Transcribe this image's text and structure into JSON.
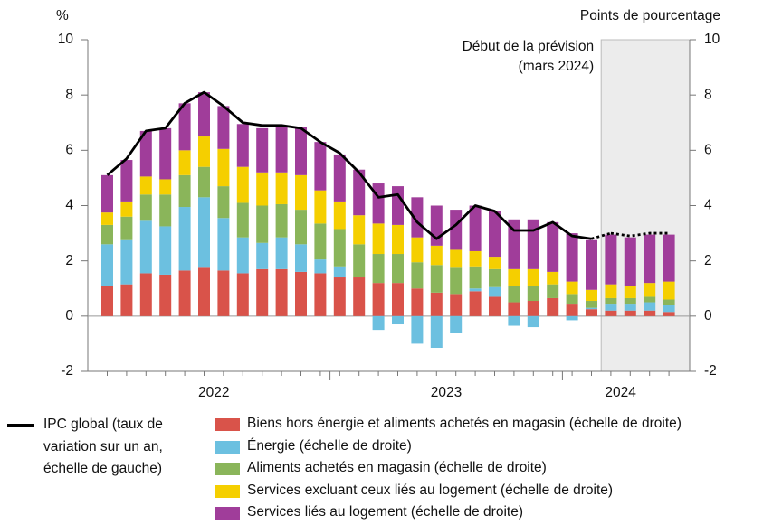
{
  "chart_data": {
    "type": "stacked_bar_line",
    "y_axis_label": "%",
    "y2_axis_label": "Points de pourcentage",
    "annotation": [
      "Début de la prévision",
      "(mars 2024)"
    ],
    "categories": [
      "2022",
      "2022",
      "2022",
      "2022",
      "2022",
      "2022",
      "2022",
      "2022",
      "2022",
      "2022",
      "2022",
      "2022",
      "2023",
      "2023",
      "2023",
      "2023",
      "2023",
      "2023",
      "2023",
      "2023",
      "2023",
      "2023",
      "2023",
      "2023",
      "2024",
      "2024",
      "2024",
      "2024",
      "2024",
      "2024"
    ],
    "ylim": [
      -2,
      10
    ],
    "yticks": [
      -2,
      0,
      2,
      4,
      6,
      8,
      10
    ],
    "y2lim": [
      -2,
      10
    ],
    "y2ticks": [
      -2,
      0,
      2,
      4,
      6,
      8,
      10
    ],
    "line": {
      "name": "IPC global (taux de variation sur un an, échelle de gauche)",
      "color": "#000000",
      "values": [
        5.1,
        5.7,
        6.7,
        6.8,
        7.7,
        8.1,
        7.6,
        7.0,
        6.9,
        6.9,
        6.8,
        6.3,
        5.9,
        5.2,
        4.3,
        4.4,
        3.4,
        2.8,
        3.3,
        4.0,
        3.8,
        3.1,
        3.1,
        3.4,
        2.9,
        2.8,
        null,
        null,
        null,
        null
      ],
      "forecast_values": [
        null,
        null,
        null,
        null,
        null,
        null,
        null,
        null,
        null,
        null,
        null,
        null,
        null,
        null,
        null,
        null,
        null,
        null,
        null,
        null,
        null,
        null,
        null,
        null,
        null,
        null,
        3.0,
        2.9,
        3.0,
        3.0
      ]
    },
    "series": [
      {
        "name": "Biens hors énergie et aliments achetés en magasin (échelle de droite)",
        "color": "#d9534a",
        "axis": "y2",
        "values": [
          1.1,
          1.15,
          1.55,
          1.5,
          1.65,
          1.75,
          1.65,
          1.55,
          1.7,
          1.7,
          1.6,
          1.55,
          1.4,
          1.4,
          1.2,
          1.2,
          1.0,
          0.85,
          0.8,
          0.9,
          0.7,
          0.5,
          0.55,
          0.65,
          0.45,
          0.25,
          0.2,
          0.2,
          0.2,
          0.15
        ]
      },
      {
        "name": "Énergie (échelle de droite)",
        "color": "#6cc0e0",
        "axis": "y2",
        "values": [
          1.5,
          1.6,
          1.9,
          1.75,
          2.3,
          2.55,
          1.9,
          1.3,
          0.95,
          1.15,
          1.0,
          0.5,
          0.4,
          0,
          -0.5,
          -0.3,
          -1.0,
          -1.15,
          -0.6,
          0.1,
          0.35,
          -0.35,
          -0.4,
          0,
          -0.15,
          0.05,
          0.25,
          0.25,
          0.3,
          0.25
        ]
      },
      {
        "name": "Aliments achetés en magasin (échelle de droite)",
        "color": "#8ab55a",
        "axis": "y2",
        "values": [
          0.7,
          0.85,
          0.95,
          1.15,
          1.15,
          1.1,
          1.15,
          1.25,
          1.35,
          1.2,
          1.25,
          1.3,
          1.35,
          1.2,
          1.05,
          1.05,
          0.95,
          1.0,
          0.95,
          0.8,
          0.65,
          0.6,
          0.55,
          0.5,
          0.35,
          0.25,
          0.2,
          0.2,
          0.2,
          0.2
        ]
      },
      {
        "name": "Services excluant ceux liés au logement (échelle de droite)",
        "color": "#f5cf00",
        "axis": "y2",
        "values": [
          0.45,
          0.55,
          0.65,
          0.55,
          0.9,
          1.1,
          1.35,
          1.3,
          1.2,
          1.15,
          1.25,
          1.2,
          1.0,
          1.05,
          1.1,
          1.05,
          0.9,
          0.7,
          0.65,
          0.55,
          0.45,
          0.6,
          0.6,
          0.45,
          0.45,
          0.4,
          0.5,
          0.45,
          0.5,
          0.65
        ]
      },
      {
        "name": "Services liés au logement (échelle de droite)",
        "color": "#a03d9a",
        "axis": "y2",
        "values": [
          1.35,
          1.5,
          1.65,
          1.85,
          1.7,
          1.6,
          1.55,
          1.55,
          1.6,
          1.7,
          1.75,
          1.75,
          1.7,
          1.65,
          1.45,
          1.4,
          1.45,
          1.45,
          1.45,
          1.65,
          1.65,
          1.8,
          1.8,
          1.8,
          1.75,
          1.8,
          1.8,
          1.75,
          1.75,
          1.7
        ]
      }
    ]
  }
}
